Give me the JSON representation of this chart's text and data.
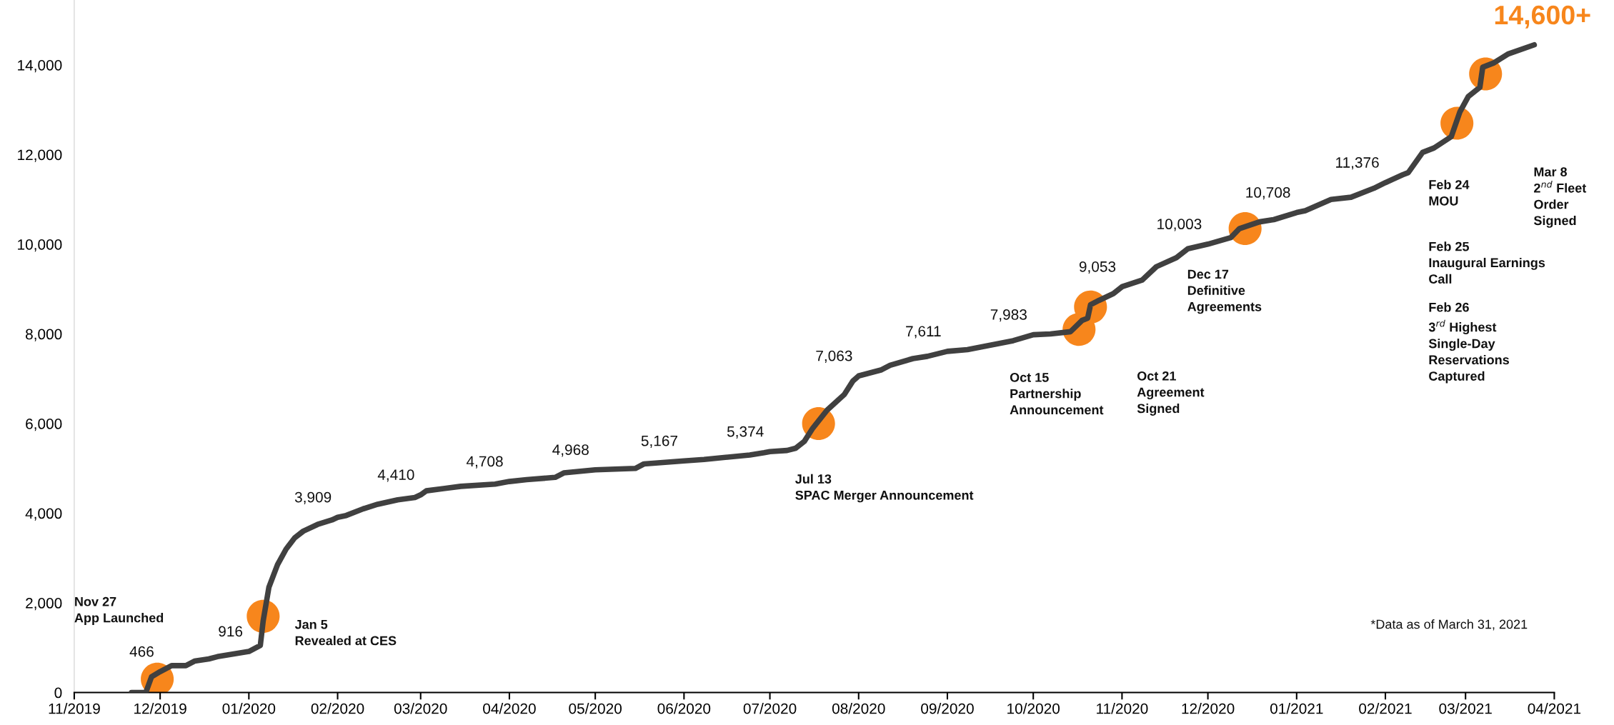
{
  "chart_data": {
    "type": "line",
    "xlim": [
      "2019-11-01",
      "2021-04-01"
    ],
    "xticks": [
      {
        "value": "2019-11-01",
        "label": "11/2019"
      },
      {
        "value": "2019-12-01",
        "label": "12/2019"
      },
      {
        "value": "2020-01-01",
        "label": "01/2020"
      },
      {
        "value": "2020-02-01",
        "label": "02/2020"
      },
      {
        "value": "2020-03-01",
        "label": "03/2020"
      },
      {
        "value": "2020-04-01",
        "label": "04/2020"
      },
      {
        "value": "2020-05-01",
        "label": "05/2020"
      },
      {
        "value": "2020-06-01",
        "label": "06/2020"
      },
      {
        "value": "2020-07-01",
        "label": "07/2020"
      },
      {
        "value": "2020-08-01",
        "label": "08/2020"
      },
      {
        "value": "2020-09-01",
        "label": "09/2020"
      },
      {
        "value": "2020-10-01",
        "label": "10/2020"
      },
      {
        "value": "2020-11-01",
        "label": "11/2020"
      },
      {
        "value": "2020-12-01",
        "label": "12/2020"
      },
      {
        "value": "2021-01-01",
        "label": "01/2021"
      },
      {
        "value": "2021-02-01",
        "label": "02/2021"
      },
      {
        "value": "2021-03-01",
        "label": "03/2021"
      },
      {
        "value": "2021-04-01",
        "label": "04/2021"
      }
    ],
    "ylim": [
      0,
      15450
    ],
    "yticks": [
      0,
      {
        "value": 2000,
        "label": "2,000"
      },
      {
        "value": 4000,
        "label": "4,000"
      },
      {
        "value": 6000,
        "label": "6,000"
      },
      {
        "value": 8000,
        "label": "8,000"
      },
      {
        "value": 10000,
        "label": "10,000"
      },
      {
        "value": 12000,
        "label": "12,000"
      },
      {
        "value": 14000,
        "label": "14,000"
      }
    ],
    "grid": false,
    "legend": false,
    "series": [
      {
        "type": "scatter",
        "marker": "circle",
        "color": "#f7861c",
        "x": [
          "2019-11-30",
          "2020-01-06",
          "2020-07-18",
          "2020-10-17",
          "2020-10-21",
          "2020-12-14",
          "2021-02-26",
          "2021-03-08"
        ],
        "values": [
          300,
          1700,
          6000,
          8100,
          8600,
          10350,
          12700,
          13800
        ]
      },
      {
        "marker": "none",
        "line_style": "solid",
        "color": "#404040",
        "x": [
          "2019-11-21",
          "2019-11-26",
          "2019-11-28",
          "2019-12-01",
          "2019-12-05",
          "2019-12-10",
          "2019-12-13",
          "2019-12-18",
          "2019-12-21",
          "2020-01-01",
          "2020-01-05",
          "2020-01-06",
          "2020-01-08",
          "2020-01-11",
          "2020-01-14",
          "2020-01-17",
          "2020-01-20",
          "2020-01-25",
          "2020-01-30",
          "2020-02-01",
          "2020-02-04",
          "2020-02-10",
          "2020-02-15",
          "2020-02-22",
          "2020-02-28",
          "2020-03-01",
          "2020-03-03",
          "2020-03-09",
          "2020-03-15",
          "2020-03-27",
          "2020-04-01",
          "2020-04-07",
          "2020-04-17",
          "2020-04-20",
          "2020-05-01",
          "2020-05-15",
          "2020-05-18",
          "2020-06-01",
          "2020-06-08",
          "2020-06-24",
          "2020-06-29",
          "2020-07-01",
          "2020-07-07",
          "2020-07-10",
          "2020-07-13",
          "2020-07-16",
          "2020-07-21",
          "2020-07-27",
          "2020-07-30",
          "2020-08-01",
          "2020-08-09",
          "2020-08-12",
          "2020-08-20",
          "2020-08-25",
          "2020-09-01",
          "2020-09-08",
          "2020-09-16",
          "2020-09-24",
          "2020-10-01",
          "2020-10-07",
          "2020-10-14",
          "2020-10-18",
          "2020-10-20",
          "2020-10-21",
          "2020-10-24",
          "2020-10-29",
          "2020-11-01",
          "2020-11-08",
          "2020-11-13",
          "2020-11-20",
          "2020-11-24",
          "2020-12-01",
          "2020-12-09",
          "2020-12-12",
          "2020-12-19",
          "2020-12-24",
          "2021-01-01",
          "2021-01-04",
          "2021-01-13",
          "2021-01-20",
          "2021-01-28",
          "2021-02-01",
          "2021-02-07",
          "2021-02-09",
          "2021-02-14",
          "2021-02-18",
          "2021-02-24",
          "2021-02-27",
          "2021-03-02",
          "2021-03-06",
          "2021-03-07",
          "2021-03-11",
          "2021-03-16",
          "2021-03-25"
        ],
        "values": [
          0,
          0,
          350,
          466,
          600,
          600,
          700,
          750,
          800,
          916,
          1050,
          1600,
          2350,
          2850,
          3200,
          3450,
          3600,
          3750,
          3850,
          3909,
          3950,
          4100,
          4200,
          4300,
          4350,
          4410,
          4500,
          4550,
          4600,
          4650,
          4708,
          4750,
          4800,
          4900,
          4968,
          5000,
          5100,
          5167,
          5200,
          5300,
          5350,
          5374,
          5400,
          5450,
          5600,
          5900,
          6300,
          6650,
          6950,
          7063,
          7200,
          7300,
          7450,
          7500,
          7611,
          7650,
          7750,
          7850,
          7983,
          8000,
          8050,
          8300,
          8350,
          8650,
          8750,
          8900,
          9053,
          9200,
          9500,
          9700,
          9900,
          10003,
          10150,
          10350,
          10500,
          10550,
          10708,
          10750,
          11000,
          11050,
          11250,
          11376,
          11550,
          11600,
          12050,
          12150,
          12400,
          12950,
          13300,
          13500,
          13950,
          14050,
          14250,
          14450
        ],
        "value_labels": [
          null,
          null,
          null,
          "466",
          null,
          null,
          null,
          null,
          null,
          "916",
          null,
          null,
          null,
          null,
          null,
          null,
          null,
          null,
          null,
          "3,909",
          null,
          null,
          null,
          null,
          null,
          "4,410",
          null,
          null,
          null,
          null,
          "4,708",
          null,
          null,
          null,
          "4,968",
          null,
          null,
          "5,167",
          null,
          null,
          null,
          "5,374",
          null,
          null,
          null,
          null,
          null,
          null,
          null,
          "7,063",
          null,
          null,
          null,
          null,
          "7,611",
          null,
          null,
          null,
          "7,983",
          null,
          null,
          null,
          null,
          null,
          null,
          null,
          "9,053",
          null,
          null,
          null,
          null,
          "10,003",
          null,
          null,
          null,
          null,
          "10,708",
          null,
          null,
          null,
          null,
          "11,376",
          null,
          null,
          null,
          null,
          null,
          null,
          null,
          null,
          null,
          null,
          null,
          null
        ]
      }
    ],
    "annotations": [
      "14,600+",
      "Nov 27\nApp Launched",
      "Jan 5\nRevealed at CES",
      "Jul 13\nSPAC Merger Announcement",
      "Oct 15\nPartnership\nAnnouncement",
      "Oct 21\nAgreement\nSigned",
      "Dec 17\nDefinitive\nAgreements",
      "Feb 24\nMOU",
      "Feb 25\nInaugural Earnings\nCall",
      "Feb 26\n3$^{rd}$ Highest\nSingle-Day\nReservations\nCaptured",
      "Mar 8\n2$^{nd}$ Fleet\nOrder\nSigned",
      "*Data as of March 31, 2021"
    ]
  }
}
